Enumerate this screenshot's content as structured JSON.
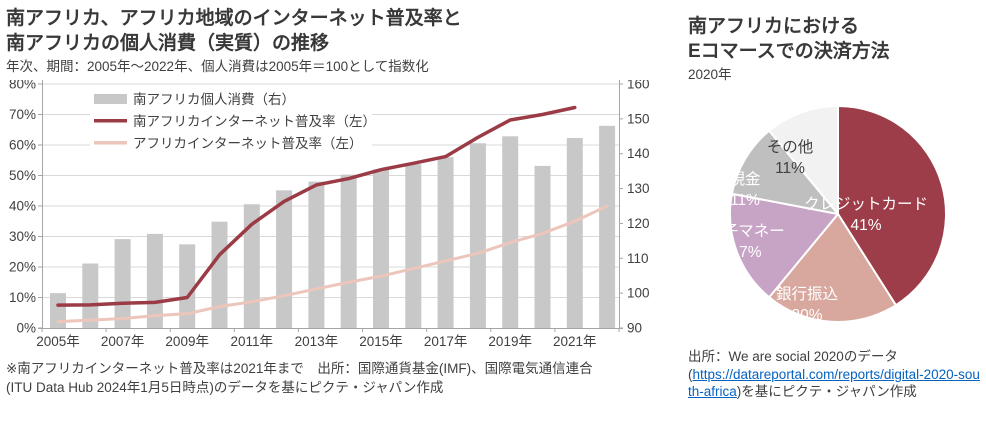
{
  "chart_data": [
    {
      "type": "combo-bar-line",
      "title_line1": "南アフリカ、アフリカ地域のインターネット普及率と",
      "title_line2": "南アフリカの個人消費（実質）の推移",
      "subtitle": "年次、期間：2005年～2022年、個人消費は2005年＝100として指数化",
      "x": [
        2005,
        2006,
        2007,
        2008,
        2009,
        2010,
        2011,
        2012,
        2013,
        2014,
        2015,
        2016,
        2017,
        2018,
        2019,
        2020,
        2021,
        2022
      ],
      "x_tick_labels": [
        "2005年",
        "2007年",
        "2009年",
        "2011年",
        "2013年",
        "2015年",
        "2017年",
        "2019年",
        "2021年"
      ],
      "axis_left": {
        "range": [
          0,
          80
        ],
        "tick_step": 10,
        "tick_suffix": "%"
      },
      "axis_right": {
        "range": [
          90,
          160
        ],
        "tick_step": 10
      },
      "grid": true,
      "legend_position": "top-left-inside",
      "series": [
        {
          "name": "南アフリカ個人消費（右）",
          "type": "bar",
          "axis": "right",
          "color": "#c8c8c8",
          "values": [
            100,
            108.5,
            115.5,
            117,
            114,
            120.5,
            125.5,
            129.5,
            132,
            134,
            135.5,
            137,
            139,
            143,
            145,
            136.5,
            144.5,
            148
          ]
        },
        {
          "name": "南アフリカインターネット普及率（左）",
          "type": "line",
          "axis": "left",
          "color": "#9a3b45",
          "values": [
            7.5,
            7.6,
            8.1,
            8.4,
            10,
            24,
            34,
            41.5,
            46.9,
            49,
            51.9,
            54,
            56.2,
            62.5,
            68.2,
            70,
            72.3,
            null
          ]
        },
        {
          "name": "アフリカインターネット普及率（左）",
          "type": "line",
          "axis": "left",
          "color": "#ecc6bb",
          "values": [
            2.1,
            2.6,
            3.1,
            4,
            4.7,
            7,
            8.6,
            10.6,
            12.8,
            15,
            17,
            19.5,
            22,
            24.5,
            28,
            31,
            35,
            40
          ]
        }
      ],
      "footnote_line1": "※南アフリカインターネット普及率は2021年まで　出所：国際通貨基金(IMF)、国際電気通信連合",
      "footnote_line2": "(ITU Data Hub 2024年1月5日時点)のデータを基にピクテ・ジャパン作成"
    },
    {
      "type": "pie",
      "title_line1": "南アフリカにおける",
      "title_line2": "Eコマースでの決済方法",
      "subtitle": "2020年",
      "start_angle_deg": 0,
      "direction": "clockwise",
      "slices": [
        {
          "label": "クレジットカード",
          "value": 41,
          "color": "#9e3d4a",
          "text_color": "#ffffff"
        },
        {
          "label": "銀行振込",
          "value": 20,
          "color": "#d8a79e",
          "text_color": "#ffffff"
        },
        {
          "label": "電子マネー",
          "value": 17,
          "color": "#c7a3c6",
          "text_color": "#ffffff"
        },
        {
          "label": "現金",
          "value": 11,
          "color": "#bfbfbf",
          "text_color": "#ffffff"
        },
        {
          "label": "その他",
          "value": 11,
          "color": "#f2f2f2",
          "text_color": "#404040"
        }
      ],
      "source": {
        "prefix": "出所：We are social 2020のデータ",
        "link_open": "(",
        "link_text": "https://datareportal.com/reports/digital-2020-south-africa",
        "suffix": ")を基にピクテ・ジャパン作成"
      }
    }
  ],
  "colors": {
    "gridline": "#d9d9d9",
    "axis": "#a6a6a6",
    "axis_text": "#404040",
    "link": "#0563c1"
  }
}
